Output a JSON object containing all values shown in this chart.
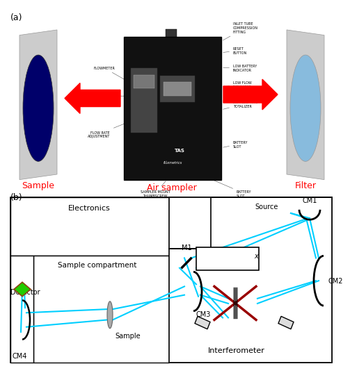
{
  "panel_a_label": "(a)",
  "panel_b_label": "(b)",
  "sample_label": "Sample",
  "air_sampler_label": "Air sampler",
  "filter_label": "Filter",
  "electronics_label": "Electronics",
  "sample_compartment_label": "Sample compartment",
  "detector_label": "Detector",
  "sample_b_label": "Sample",
  "cm4_label": "CM4",
  "cm1_label": "CM1",
  "cm2_label": "CM2",
  "cm3_label": "CM3",
  "m1_label": "M1",
  "source_label": "Source",
  "interferometer_label": "Interferometer",
  "x_label": "x",
  "label_color_red": "#FF0000",
  "arrow_color": "#FF0000",
  "cyan_color": "#00CFFF",
  "dark_red_color": "#990000",
  "green_color": "#22CC00",
  "left_circle_color": "#00006A",
  "right_circle_color": "#88BBDD",
  "card_color": "#C8C8C8",
  "sampler_bg": "#111111",
  "sampler_panel": "#444444",
  "sampler_screen": "#777777",
  "label_fs": 7,
  "small_fs": 3.5
}
